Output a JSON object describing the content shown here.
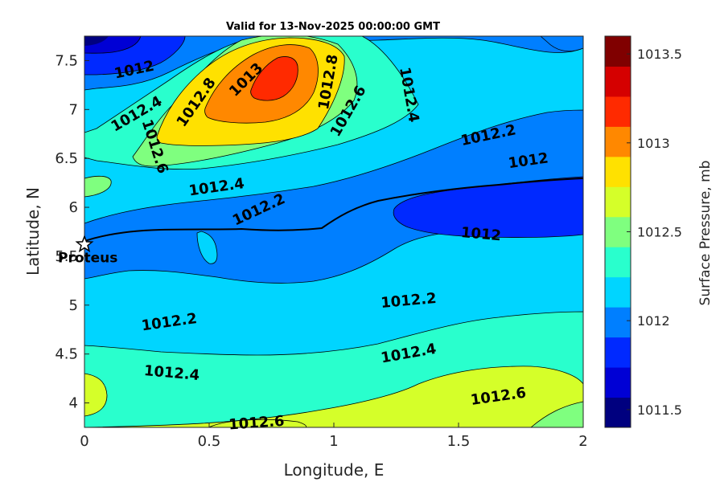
{
  "chart_data": {
    "type": "contour",
    "title": "Valid for 13-Nov-2025 00:00:00 GMT",
    "xlabel": "Longitude, E",
    "ylabel": "Latitude, N",
    "xlim": [
      0,
      2
    ],
    "ylim": [
      3.75,
      7.75
    ],
    "xticks": [
      "0",
      "0.5",
      "1",
      "1.5",
      "2"
    ],
    "yticks": [
      "4",
      "4.5",
      "5",
      "5.5",
      "6",
      "6.5",
      "7",
      "7.5"
    ],
    "colorbar": {
      "label": "Surface Pressure, mb",
      "min": 1011.4,
      "max": 1013.6,
      "step": 0.1,
      "ticks": [
        "1011.5",
        "1012",
        "1012.5",
        "1013",
        "1013.5"
      ],
      "colors": [
        "#00007f",
        "#0000d5",
        "#0029ff",
        "#007fff",
        "#00d5ff",
        "#29ffcd",
        "#7fff7f",
        "#d5ff29",
        "#ffe100",
        "#ff8800",
        "#ff2a00",
        "#d50000",
        "#800000"
      ]
    },
    "contour_levels": [
      1012,
      1012.2,
      1012.4,
      1012.6,
      1012.8,
      1013
    ],
    "contour_labels": [
      {
        "text": "1012",
        "lon": 0.2,
        "lat": 7.4
      },
      {
        "text": "1012.4",
        "lon": 0.21,
        "lat": 6.95
      },
      {
        "text": "1012.6",
        "lon": 0.28,
        "lat": 6.62
      },
      {
        "text": "1012.8",
        "lon": 0.45,
        "lat": 7.07
      },
      {
        "text": "1013",
        "lon": 0.65,
        "lat": 7.3
      },
      {
        "text": "1012.8",
        "lon": 0.98,
        "lat": 7.28
      },
      {
        "text": "1012.6",
        "lon": 1.06,
        "lat": 6.98
      },
      {
        "text": "1012.4",
        "lon": 1.3,
        "lat": 7.15
      },
      {
        "text": "1012.2",
        "lon": 1.62,
        "lat": 6.73
      },
      {
        "text": "1012",
        "lon": 1.78,
        "lat": 6.47
      },
      {
        "text": "1012.4",
        "lon": 0.53,
        "lat": 6.2
      },
      {
        "text": "1012.2",
        "lon": 0.7,
        "lat": 5.97
      },
      {
        "text": "1012",
        "lon": 1.59,
        "lat": 5.72
      },
      {
        "text": "1012.2",
        "lon": 1.3,
        "lat": 5.04
      },
      {
        "text": "1012.2",
        "lon": 0.34,
        "lat": 4.82
      },
      {
        "text": "1012.4",
        "lon": 1.3,
        "lat": 4.5
      },
      {
        "text": "1012.4",
        "lon": 0.35,
        "lat": 4.3
      },
      {
        "text": "1012.6",
        "lon": 1.66,
        "lat": 4.06
      },
      {
        "text": "1012.6",
        "lon": 0.69,
        "lat": 3.79
      }
    ],
    "marker": {
      "name": "Proteus",
      "lon": 0.0,
      "lat": 5.62,
      "symbol": "star"
    }
  }
}
